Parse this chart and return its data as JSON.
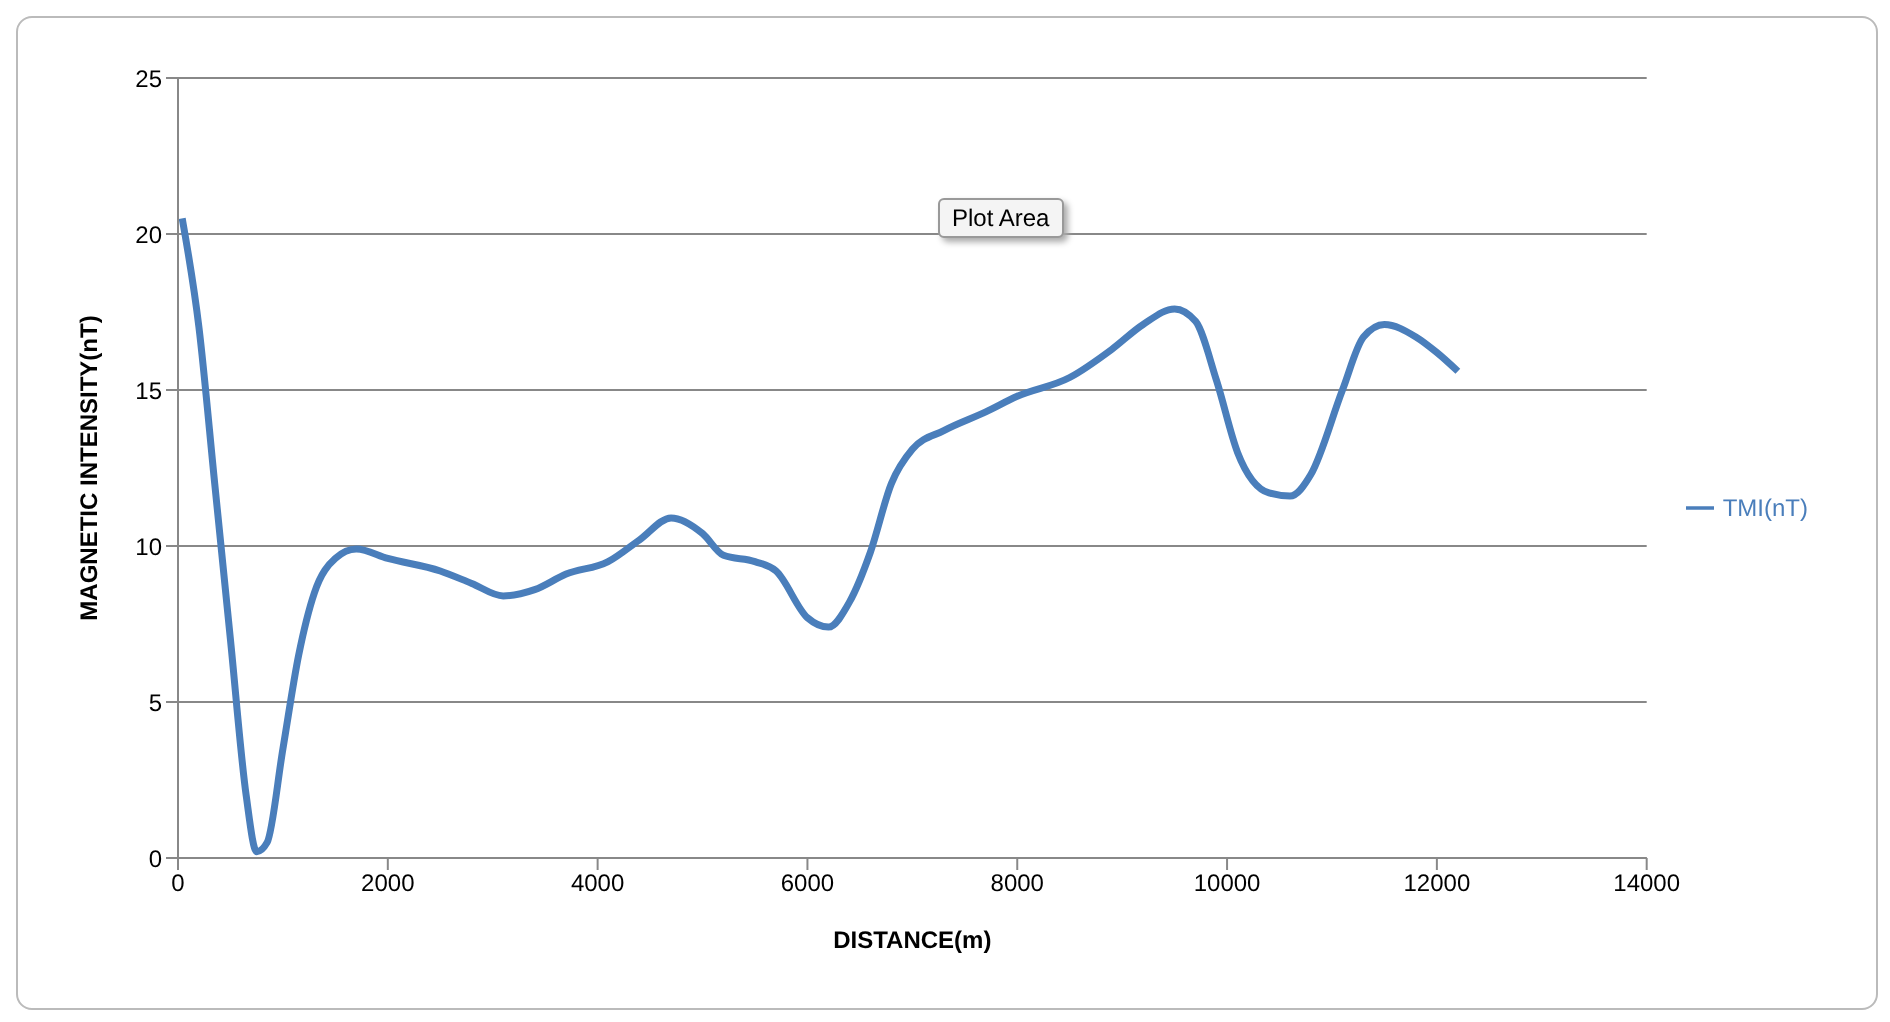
{
  "chart_data": {
    "type": "line",
    "xlabel": "DISTANCE(m)",
    "ylabel": "MAGNETIC  INTENSITY(nT)",
    "annotations": [
      "Plot Area"
    ],
    "xlim": [
      0,
      14000
    ],
    "xticks": [
      0,
      2000,
      4000,
      6000,
      8000,
      10000,
      12000,
      14000
    ],
    "ylim": [
      0,
      25
    ],
    "yticks": [
      0,
      5,
      10,
      15,
      20,
      25
    ],
    "grid": "y",
    "legend": "right",
    "marker": "none",
    "line_style": "solid",
    "x": [
      40,
      200,
      350,
      500,
      650,
      750,
      850,
      1000,
      1150,
      1300,
      1500,
      1700,
      2000,
      2500,
      2800,
      3100,
      3400,
      3700,
      4100,
      4400,
      4700,
      5000,
      5200,
      5500,
      5700,
      6000,
      6200,
      6400,
      6600,
      6800,
      7000,
      7300,
      7700,
      8000,
      8500,
      8900,
      9200,
      9500,
      9700,
      9900,
      10100,
      10400,
      10600,
      10800,
      11100,
      11300,
      11500,
      11800,
      12000,
      12200
    ],
    "series": [
      {
        "name": "TMI(nT)",
        "color": "#4a7ebb",
        "values": [
          20.5,
          17,
          12,
          7,
          2,
          0.2,
          0.5,
          3.5,
          6.5,
          8.5,
          9.6,
          9.9,
          9.6,
          9.2,
          8.8,
          8.4,
          8.6,
          9.1,
          9.5,
          10.2,
          10.9,
          10.4,
          9.7,
          9.5,
          9.2,
          7.7,
          7.4,
          8.2,
          9.8,
          12.0,
          13.1,
          13.7,
          14.3,
          14.8,
          15.4,
          16.3,
          17.1,
          17.6,
          17.2,
          15.3,
          13.0,
          11.7,
          11.6,
          12.3,
          15.0,
          16.7,
          17.1,
          16.7,
          16.2,
          15.6
        ]
      }
    ]
  }
}
